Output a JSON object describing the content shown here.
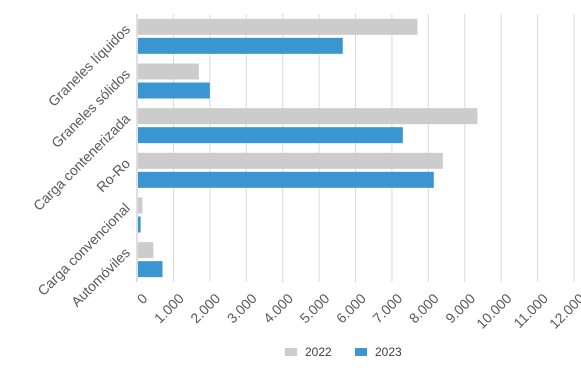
{
  "chart_data": {
    "type": "bar",
    "orientation": "horizontal",
    "categories": [
      "Graneles líquidos",
      "Graneles sólidos",
      "Carga contenerizada",
      "Ro-Ro",
      "Carga convencional",
      "Automóviles"
    ],
    "series": [
      {
        "name": "2022",
        "color": "#cccccc",
        "values": [
          7700,
          1700,
          9350,
          8400,
          150,
          450
        ]
      },
      {
        "name": "2023",
        "color": "#3a96d0",
        "values": [
          5650,
          2000,
          7300,
          8150,
          100,
          700
        ]
      }
    ],
    "xlim": [
      0,
      12000
    ],
    "xticks": [
      0,
      1000,
      2000,
      3000,
      4000,
      5000,
      6000,
      7000,
      8000,
      9000,
      10000,
      11000,
      12000
    ],
    "xtick_labels": [
      "0",
      "1.000",
      "2.000",
      "3.000",
      "4.000",
      "5.000",
      "6.000",
      "7.000",
      "8.000",
      "9.000",
      "10.000",
      "11.000",
      "12.000"
    ],
    "grid": "vertical",
    "legend_position": "bottom",
    "title": "",
    "xlabel": "",
    "ylabel": ""
  }
}
